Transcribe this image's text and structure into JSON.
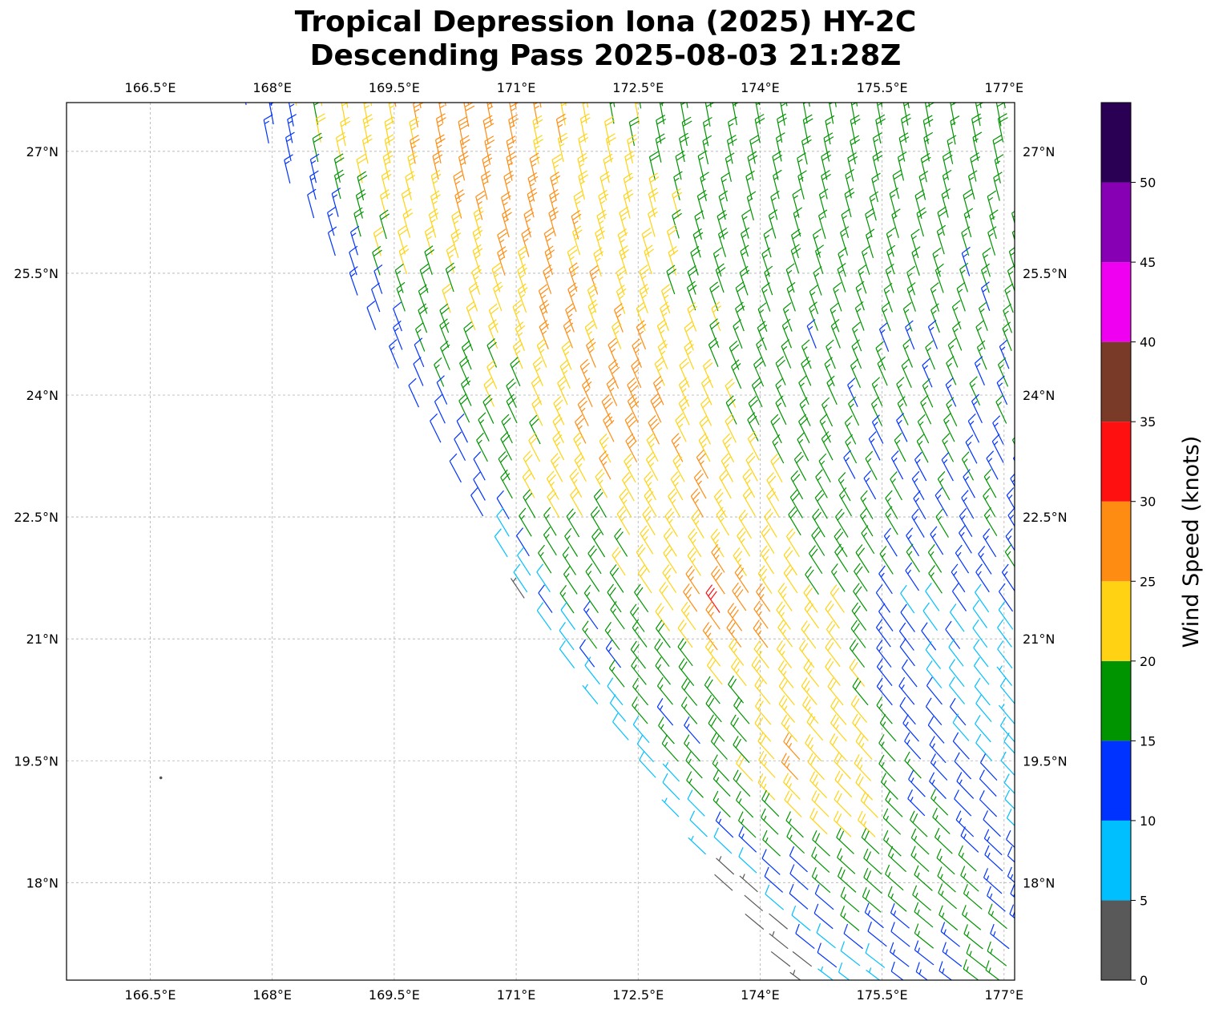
{
  "title": {
    "line1": "Tropical Depression Iona (2025) HY-2C",
    "line2": "Descending Pass 2025-08-03 21:28Z"
  },
  "map": {
    "projection": "PlateCarree",
    "lon_range": [
      165.47,
      177.13
    ],
    "lat_range": [
      16.8,
      27.6
    ],
    "gridlines": true,
    "lon_ticks": [
      {
        "value": 166.5,
        "label": "166.5°E"
      },
      {
        "value": 168.0,
        "label": "168°E"
      },
      {
        "value": 169.5,
        "label": "169.5°E"
      },
      {
        "value": 171.0,
        "label": "171°E"
      },
      {
        "value": 172.5,
        "label": "172.5°E"
      },
      {
        "value": 174.0,
        "label": "174°E"
      },
      {
        "value": 175.5,
        "label": "175.5°E"
      },
      {
        "value": 177.0,
        "label": "177°E"
      }
    ],
    "lat_ticks": [
      {
        "value": 27.0,
        "label": "27°N"
      },
      {
        "value": 25.5,
        "label": "25.5°N"
      },
      {
        "value": 24.0,
        "label": "24°N"
      },
      {
        "value": 22.5,
        "label": "22.5°N"
      },
      {
        "value": 21.0,
        "label": "21°N"
      },
      {
        "value": 19.5,
        "label": "19.5°N"
      },
      {
        "value": 18.0,
        "label": "18°N"
      }
    ],
    "island": {
      "lon": 166.63,
      "lat": 19.29
    },
    "swath": {
      "left_edge": [
        [
          167.6,
          27.6
        ],
        [
          171.5,
          20.8
        ],
        [
          174.4,
          16.8
        ]
      ],
      "right_edge": [
        177.13,
        16.8
      ]
    },
    "barbs": {
      "units": "knots",
      "core_of_high_winds": [
        {
          "lon": 172.4,
          "lat": 23.6,
          "speed": 27
        },
        {
          "lon": 173.6,
          "lat": 21.3,
          "speed": 28
        },
        {
          "lon": 174.3,
          "lat": 19.2,
          "speed": 27
        },
        {
          "lon": 171.4,
          "lat": 22.9,
          "speed": 26
        }
      ]
    }
  },
  "colorbar": {
    "label": "Wind Speed (knots)",
    "boundaries": [
      0,
      5,
      10,
      15,
      20,
      25,
      30,
      35,
      40,
      45,
      50,
      55
    ],
    "colors": [
      "#595959",
      "#00bfff",
      "#0033ff",
      "#009400",
      "#ffd313",
      "#ff8c12",
      "#ff1010",
      "#7a3a28",
      "#f000f0",
      "#8800b4",
      "#2a0055"
    ],
    "ticks": [
      {
        "value": 0,
        "label": "0"
      },
      {
        "value": 5,
        "label": "5"
      },
      {
        "value": 10,
        "label": "10"
      },
      {
        "value": 15,
        "label": "15"
      },
      {
        "value": 20,
        "label": "20"
      },
      {
        "value": 25,
        "label": "25"
      },
      {
        "value": 30,
        "label": "30"
      },
      {
        "value": 35,
        "label": "35"
      },
      {
        "value": 40,
        "label": "40"
      },
      {
        "value": 45,
        "label": "45"
      },
      {
        "value": 50,
        "label": "50"
      }
    ]
  }
}
